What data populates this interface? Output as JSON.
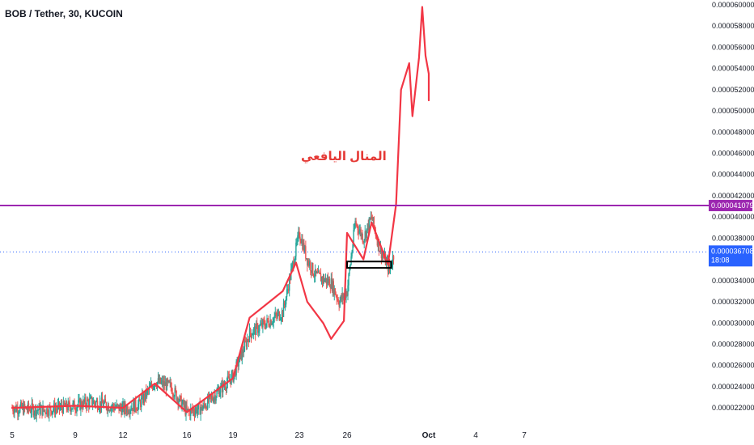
{
  "title": "BOB / Tether, 30, KUCOIN",
  "annotation_text": "المنال اليافعي",
  "colors": {
    "up": "#26a69a",
    "down": "#ef5350",
    "projection": "#f23645",
    "resistance": "#9c27b0",
    "last_price": "#2962ff",
    "axis_text": "#131722",
    "annotation": "#e53935"
  },
  "chart_data": {
    "type": "candlestick",
    "title": "BOB / Tether, 30, KUCOIN",
    "x_ticks": [
      "5",
      "9",
      "12",
      "16",
      "19",
      "23",
      "26",
      "Oct",
      "4",
      "7"
    ],
    "y_ticks": [
      "0.000060000",
      "0.000058000",
      "0.000056000",
      "0.000054000",
      "0.000052000",
      "0.000050000",
      "0.000048000",
      "0.000046000",
      "0.000044000",
      "0.000042000",
      "0.000040000",
      "0.000038000",
      "0.000034000",
      "0.000032000",
      "0.000030000",
      "0.000028000",
      "0.000026000",
      "0.000024000",
      "0.000022000"
    ],
    "ylim": [
      2.14e-05,
      6e-05
    ],
    "resistance_label": "0.000041079",
    "resistance_value": 4.1079e-05,
    "last_price_label": "0.000036708",
    "last_price_value": 3.6708e-05,
    "countdown": "18:08",
    "price_trace": [
      [
        "Sep 5",
        2.2e-05
      ],
      [
        "Sep 7",
        2.18e-05
      ],
      [
        "Sep 9",
        2.22e-05
      ],
      [
        "Sep 10",
        2.26e-05
      ],
      [
        "Sep 12",
        2.19e-05
      ],
      [
        "Sep 13",
        2.23e-05
      ],
      [
        "Sep 14",
        2.45e-05
      ],
      [
        "Sep 15",
        2.4e-05
      ],
      [
        "Sep 16",
        2.16e-05
      ],
      [
        "Sep 17",
        2.2e-05
      ],
      [
        "Sep 18",
        2.35e-05
      ],
      [
        "Sep 19",
        2.5e-05
      ],
      [
        "Sep 20",
        2.9e-05
      ],
      [
        "Sep 21",
        3e-05
      ],
      [
        "Sep 22",
        3.1e-05
      ],
      [
        "Sep 23",
        3.85e-05
      ],
      [
        "Sep 23.5",
        3.6e-05
      ],
      [
        "Sep 24",
        3.45e-05
      ],
      [
        "Sep 25",
        3.38e-05
      ],
      [
        "Sep 25.5",
        3.2e-05
      ],
      [
        "Sep 26",
        3.3e-05
      ],
      [
        "Sep 26.5",
        3.95e-05
      ],
      [
        "Sep 27",
        3.8e-05
      ],
      [
        "Sep 27.5",
        4e-05
      ],
      [
        "Sep 28",
        3.7e-05
      ],
      [
        "Sep 28.6",
        3.5e-05
      ],
      [
        "Sep 28.9",
        3.67e-05
      ]
    ],
    "projection": [
      [
        "Sep 5",
        2.2e-05
      ],
      [
        "Sep 9",
        2.22e-05
      ],
      [
        "Sep 12",
        2.2e-05
      ],
      [
        "Sep 14",
        2.43e-05
      ],
      [
        "Sep 16",
        2.16e-05
      ],
      [
        "Sep 19",
        2.48e-05
      ],
      [
        "Sep 20",
        3.05e-05
      ],
      [
        "Sep 22",
        3.3e-05
      ],
      [
        "Sep 22.8",
        3.57e-05
      ],
      [
        "Sep 23.5",
        3.2e-05
      ],
      [
        "Sep 24.5",
        3e-05
      ],
      [
        "Sep 25",
        2.85e-05
      ],
      [
        "Sep 25.8",
        3.02e-05
      ],
      [
        "Sep 26",
        3.85e-05
      ],
      [
        "Sep 27",
        3.6e-05
      ],
      [
        "Sep 27.5",
        3.95e-05
      ],
      [
        "Sep 28.5",
        3.55e-05
      ],
      [
        "Sep 29",
        4.12e-05
      ],
      [
        "Sep 29.3",
        5.2e-05
      ],
      [
        "Sep 29.8",
        5.45e-05
      ],
      [
        "Sep 30",
        4.95e-05
      ],
      [
        "Sep 30.4",
        5.5e-05
      ],
      [
        "Sep 30.6",
        5.98e-05
      ],
      [
        "Sep 30.8",
        5.52e-05
      ],
      [
        "Sep 31",
        5.35e-05
      ],
      [
        "Oct 1",
        5.1e-05
      ]
    ],
    "box_range": [
      3.52e-05,
      3.58e-05
    ]
  }
}
